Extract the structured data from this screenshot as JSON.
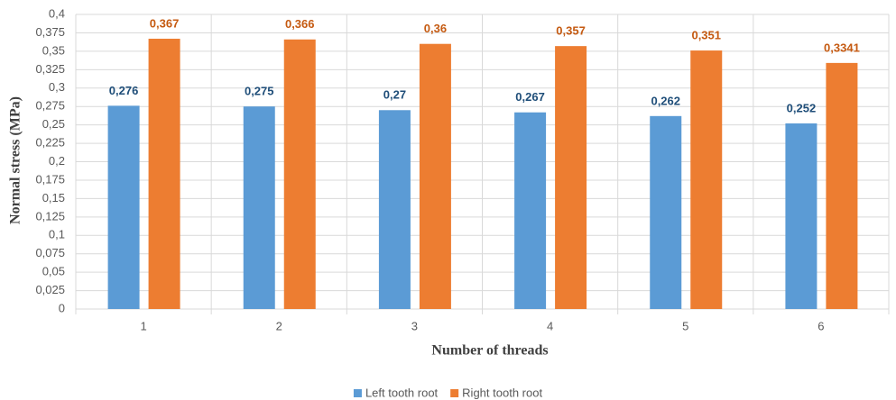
{
  "chart_data": {
    "type": "bar",
    "y_label": "Normal stress (MPa)",
    "x_label": "Number of threads",
    "categories": [
      "1",
      "2",
      "3",
      "4",
      "5",
      "6"
    ],
    "series": [
      {
        "name": "Left tooth root",
        "color": "#5b9bd5",
        "label_color": "#1f4e79",
        "values": [
          0.276,
          0.275,
          0.27,
          0.267,
          0.262,
          0.252
        ],
        "value_labels": [
          "0,276",
          "0,275",
          "0,27",
          "0,267",
          "0,262",
          "0,252"
        ]
      },
      {
        "name": "Right tooth root",
        "color": "#ed7d31",
        "label_color": "#c55a11",
        "values": [
          0.367,
          0.366,
          0.36,
          0.357,
          0.351,
          0.3341
        ],
        "value_labels": [
          "0,367",
          "0,366",
          "0,36",
          "0,357",
          "0,351",
          "0,3341"
        ]
      }
    ],
    "ylim": [
      0,
      0.4
    ],
    "yticks": [
      0,
      {
        "value": 0.025,
        "label": "0,025"
      },
      {
        "value": 0.05,
        "label": "0,05"
      },
      {
        "value": 0.075,
        "label": "0,075"
      },
      {
        "value": 0.1,
        "label": "0,1"
      },
      {
        "value": 0.125,
        "label": "0,125"
      },
      {
        "value": 0.15,
        "label": "0,15"
      },
      {
        "value": 0.175,
        "label": "0,175"
      },
      {
        "value": 0.2,
        "label": "0,2"
      },
      {
        "value": 0.225,
        "label": "0,225"
      },
      {
        "value": 0.25,
        "label": "0,25"
      },
      {
        "value": 0.275,
        "label": "0,275"
      },
      {
        "value": 0.3,
        "label": "0,3"
      },
      {
        "value": 0.325,
        "label": "0,325"
      },
      {
        "value": 0.35,
        "label": "0,35"
      },
      {
        "value": 0.375,
        "label": "0,375"
      },
      {
        "value": 0.4,
        "label": "0,4"
      }
    ],
    "grid": true,
    "legend": "bottom"
  }
}
